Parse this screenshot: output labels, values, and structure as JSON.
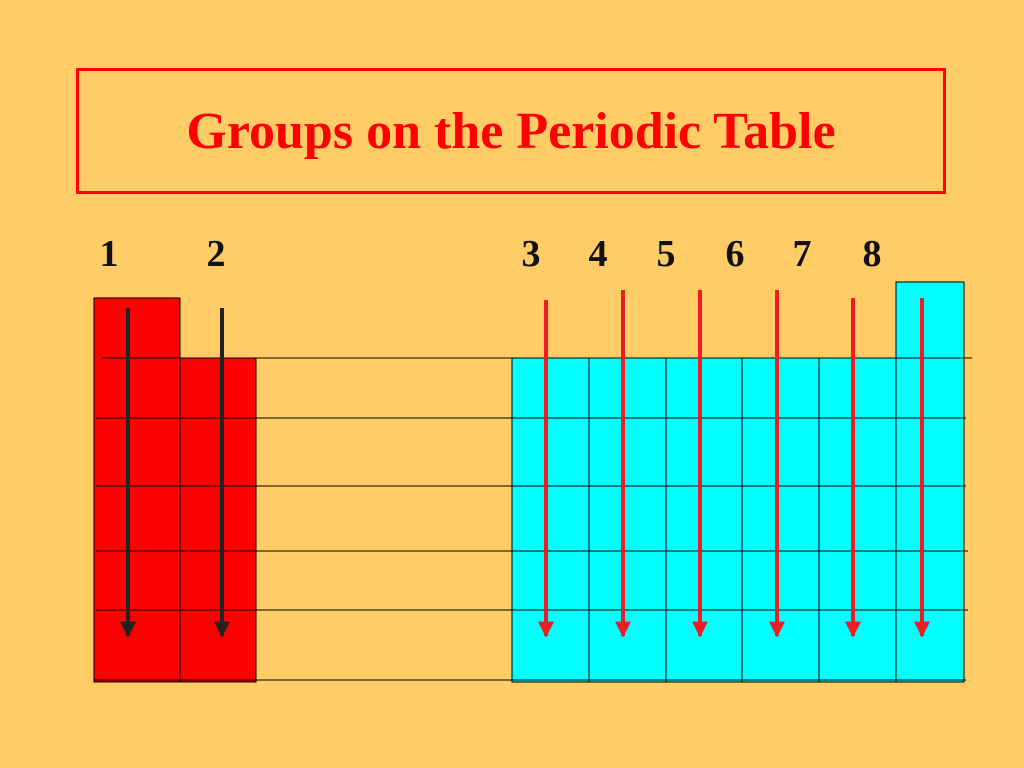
{
  "title": "Groups on the Periodic Table",
  "groups": [
    "1",
    "2",
    "3",
    "4",
    "5",
    "6",
    "7",
    "8"
  ],
  "colors": {
    "background": "#FFCC66",
    "title": "#FF0000",
    "s_block": "#FF0000",
    "p_block": "#00FFFF",
    "s_block_arrows": "#222222",
    "p_block_arrows": "#EE1C24"
  }
}
